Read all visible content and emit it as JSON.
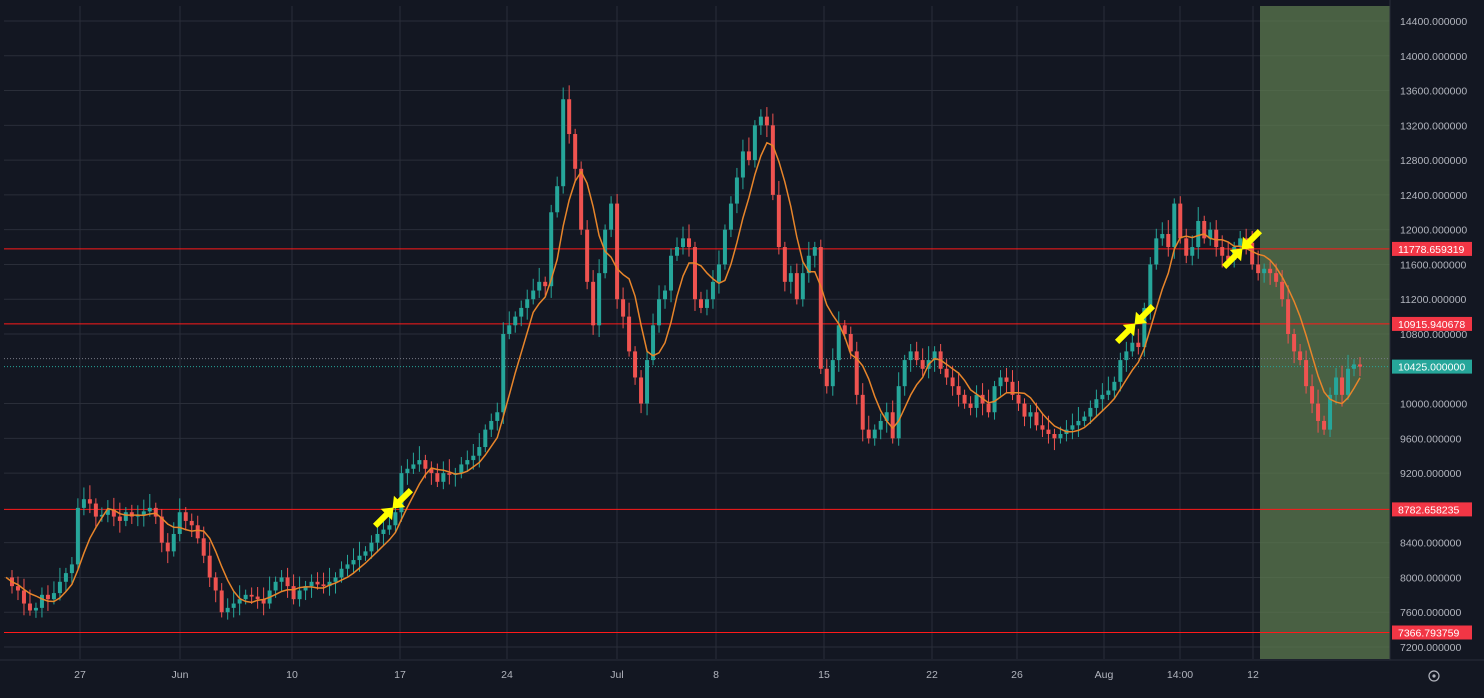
{
  "chart_data": {
    "type": "candlestick",
    "x_tick_labels": [
      "27",
      "Jun",
      "10",
      "17",
      "24",
      "Jul",
      "8",
      "15",
      "22",
      "26",
      "Aug",
      "14:00",
      "12"
    ],
    "y_tick_labels": [
      "14400.000000",
      "14000.000000",
      "13600.000000",
      "13200.000000",
      "12800.000000",
      "12400.000000",
      "12000.000000",
      "11600.000000",
      "11200.000000",
      "10800.000000",
      "10000.000000",
      "9600.000000",
      "9200.000000",
      "8400.000000",
      "8000.000000",
      "7600.000000",
      "7200.000000"
    ],
    "ylim": [
      7050,
      14550
    ],
    "last_price": 10425,
    "last_price_label": "10425.000000",
    "horizontal_levels": [
      {
        "value": 11778.659319,
        "label": "11778.659319"
      },
      {
        "value": 10915.940678,
        "label": "10915.940678"
      },
      {
        "value": 8782.658235,
        "label": "8782.658235"
      },
      {
        "value": 7366.793759,
        "label": "7366.793759"
      }
    ],
    "close_series": [
      [
        0,
        8000
      ],
      [
        6,
        7900
      ],
      [
        12,
        7850
      ],
      [
        18,
        7700
      ],
      [
        24,
        7620
      ],
      [
        30,
        7650
      ],
      [
        36,
        7800
      ],
      [
        42,
        7750
      ],
      [
        48,
        7820
      ],
      [
        54,
        7950
      ],
      [
        60,
        8050
      ],
      [
        66,
        8150
      ],
      [
        72,
        8800
      ],
      [
        78,
        8900
      ],
      [
        84,
        8850
      ],
      [
        90,
        8700
      ],
      [
        96,
        8720
      ],
      [
        102,
        8780
      ],
      [
        108,
        8700
      ],
      [
        114,
        8650
      ],
      [
        120,
        8750
      ],
      [
        126,
        8700
      ],
      [
        132,
        8720
      ],
      [
        138,
        8760
      ],
      [
        144,
        8800
      ],
      [
        150,
        8700
      ],
      [
        156,
        8400
      ],
      [
        162,
        8300
      ],
      [
        168,
        8500
      ],
      [
        174,
        8750
      ],
      [
        180,
        8650
      ],
      [
        186,
        8600
      ],
      [
        192,
        8450
      ],
      [
        198,
        8250
      ],
      [
        204,
        8000
      ],
      [
        210,
        7850
      ],
      [
        216,
        7600
      ],
      [
        222,
        7650
      ],
      [
        228,
        7700
      ],
      [
        234,
        7750
      ],
      [
        240,
        7800
      ],
      [
        246,
        7780
      ],
      [
        252,
        7750
      ],
      [
        258,
        7700
      ],
      [
        264,
        7850
      ],
      [
        270,
        7950
      ],
      [
        276,
        8000
      ],
      [
        282,
        7900
      ],
      [
        288,
        7750
      ],
      [
        294,
        7850
      ],
      [
        300,
        7900
      ],
      [
        306,
        7950
      ],
      [
        312,
        7920
      ],
      [
        318,
        7900
      ],
      [
        324,
        7950
      ],
      [
        330,
        8000
      ],
      [
        336,
        8100
      ],
      [
        342,
        8150
      ],
      [
        348,
        8200
      ],
      [
        354,
        8250
      ],
      [
        360,
        8300
      ],
      [
        366,
        8400
      ],
      [
        372,
        8500
      ],
      [
        378,
        8550
      ],
      [
        384,
        8600
      ],
      [
        390,
        8750
      ],
      [
        396,
        9200
      ],
      [
        402,
        9250
      ],
      [
        408,
        9300
      ],
      [
        414,
        9350
      ],
      [
        420,
        9250
      ],
      [
        426,
        9200
      ],
      [
        432,
        9100
      ],
      [
        438,
        9200
      ],
      [
        444,
        9180
      ],
      [
        450,
        9200
      ],
      [
        456,
        9300
      ],
      [
        462,
        9350
      ],
      [
        468,
        9400
      ],
      [
        474,
        9500
      ],
      [
        480,
        9700
      ],
      [
        486,
        9800
      ],
      [
        492,
        9900
      ],
      [
        498,
        10800
      ],
      [
        504,
        10900
      ],
      [
        510,
        11000
      ],
      [
        516,
        11100
      ],
      [
        522,
        11200
      ],
      [
        528,
        11300
      ],
      [
        534,
        11400
      ],
      [
        540,
        11350
      ],
      [
        546,
        12200
      ],
      [
        552,
        12500
      ],
      [
        558,
        13500
      ],
      [
        564,
        13100
      ],
      [
        570,
        12700
      ],
      [
        576,
        12000
      ],
      [
        582,
        11400
      ],
      [
        588,
        10900
      ],
      [
        594,
        11500
      ],
      [
        600,
        12000
      ],
      [
        606,
        12300
      ],
      [
        612,
        11200
      ],
      [
        618,
        11000
      ],
      [
        624,
        10600
      ],
      [
        630,
        10300
      ],
      [
        636,
        10000
      ],
      [
        642,
        10500
      ],
      [
        648,
        10900
      ],
      [
        654,
        11200
      ],
      [
        660,
        11300
      ],
      [
        666,
        11700
      ],
      [
        672,
        11800
      ],
      [
        678,
        11900
      ],
      [
        684,
        11800
      ],
      [
        690,
        11200
      ],
      [
        696,
        11100
      ],
      [
        702,
        11200
      ],
      [
        708,
        11400
      ],
      [
        714,
        11600
      ],
      [
        720,
        12000
      ],
      [
        726,
        12300
      ],
      [
        732,
        12600
      ],
      [
        738,
        12900
      ],
      [
        744,
        12800
      ],
      [
        750,
        13200
      ],
      [
        756,
        13300
      ],
      [
        762,
        13200
      ],
      [
        768,
        12400
      ],
      [
        774,
        11800
      ],
      [
        780,
        11400
      ],
      [
        786,
        11500
      ],
      [
        792,
        11200
      ],
      [
        798,
        11500
      ],
      [
        804,
        11700
      ],
      [
        810,
        11800
      ],
      [
        816,
        10400
      ],
      [
        822,
        10200
      ],
      [
        828,
        10500
      ],
      [
        834,
        10900
      ],
      [
        840,
        10800
      ],
      [
        846,
        10600
      ],
      [
        852,
        10100
      ],
      [
        858,
        9700
      ],
      [
        864,
        9600
      ],
      [
        870,
        9700
      ],
      [
        876,
        9800
      ],
      [
        882,
        9900
      ],
      [
        888,
        9600
      ],
      [
        894,
        10200
      ],
      [
        900,
        10500
      ],
      [
        906,
        10600
      ],
      [
        912,
        10500
      ],
      [
        918,
        10400
      ],
      [
        924,
        10500
      ],
      [
        930,
        10600
      ],
      [
        936,
        10400
      ],
      [
        942,
        10300
      ],
      [
        948,
        10200
      ],
      [
        954,
        10100
      ],
      [
        960,
        10000
      ],
      [
        966,
        9950
      ],
      [
        972,
        10100
      ],
      [
        978,
        10000
      ],
      [
        984,
        9900
      ],
      [
        990,
        10200
      ],
      [
        996,
        10300
      ],
      [
        1002,
        10250
      ],
      [
        1008,
        10100
      ],
      [
        1014,
        10000
      ],
      [
        1020,
        9850
      ],
      [
        1026,
        9900
      ],
      [
        1032,
        9750
      ],
      [
        1038,
        9700
      ],
      [
        1044,
        9650
      ],
      [
        1050,
        9600
      ],
      [
        1056,
        9650
      ],
      [
        1062,
        9700
      ],
      [
        1068,
        9750
      ],
      [
        1074,
        9800
      ],
      [
        1080,
        9850
      ],
      [
        1086,
        9950
      ],
      [
        1092,
        10050
      ],
      [
        1098,
        10100
      ],
      [
        1104,
        10150
      ],
      [
        1110,
        10250
      ],
      [
        1116,
        10500
      ],
      [
        1122,
        10600
      ],
      [
        1128,
        10700
      ],
      [
        1134,
        10650
      ],
      [
        1140,
        11100
      ],
      [
        1146,
        11600
      ],
      [
        1152,
        11900
      ],
      [
        1158,
        11950
      ],
      [
        1164,
        11800
      ],
      [
        1170,
        12300
      ],
      [
        1176,
        11900
      ],
      [
        1182,
        11700
      ],
      [
        1188,
        11800
      ],
      [
        1194,
        12100
      ],
      [
        1200,
        11900
      ],
      [
        1206,
        12000
      ],
      [
        1212,
        11800
      ],
      [
        1218,
        11700
      ],
      [
        1224,
        11650
      ],
      [
        1230,
        11800
      ],
      [
        1236,
        11900
      ],
      [
        1242,
        11850
      ],
      [
        1248,
        11600
      ],
      [
        1254,
        11500
      ],
      [
        1260,
        11550
      ],
      [
        1266,
        11500
      ],
      [
        1272,
        11400
      ],
      [
        1278,
        11200
      ],
      [
        1284,
        10800
      ],
      [
        1290,
        10600
      ],
      [
        1296,
        10500
      ],
      [
        1302,
        10200
      ],
      [
        1308,
        10000
      ],
      [
        1314,
        9800
      ],
      [
        1320,
        9700
      ],
      [
        1326,
        10100
      ],
      [
        1332,
        10300
      ],
      [
        1338,
        10100
      ],
      [
        1344,
        10400
      ],
      [
        1350,
        10450
      ],
      [
        1356,
        10425
      ]
    ],
    "ma_line_color": "#e8852a",
    "up_color": "#26a69a",
    "down_color": "#ef5350",
    "level_color": "#ff1a1a",
    "highlight_color": "#5c7a4f",
    "arrow_color": "#ffff00",
    "text_color": "#b2b5be",
    "background": "#131722",
    "grid": true
  }
}
